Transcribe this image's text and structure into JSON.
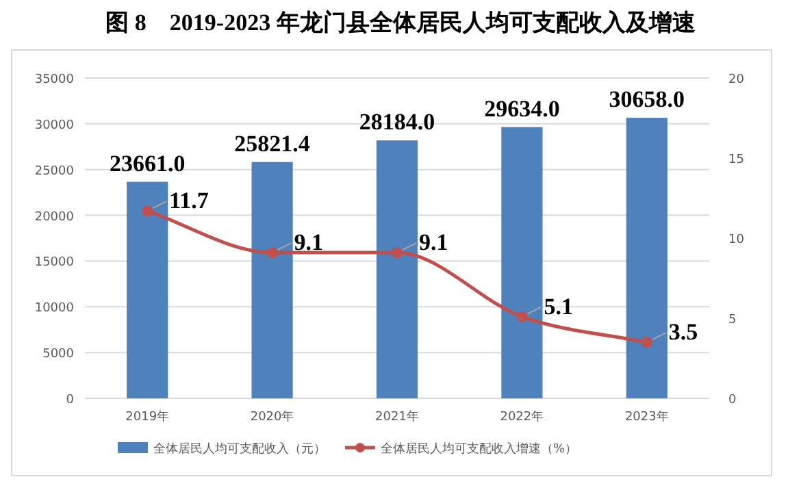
{
  "chart_data": {
    "type": "bar",
    "title": "图 8　2019-2023 年龙门县全体居民人均可支配收入及增速",
    "categories": [
      "2019年",
      "2020年",
      "2021年",
      "2022年",
      "2023年"
    ],
    "series": [
      {
        "name": "全体居民人均可支配收入（元）",
        "color": "#4f81bd",
        "values": [
          23661.0,
          25821.4,
          28184.0,
          29634.0,
          30658.0
        ],
        "value_labels": [
          "23661.0",
          "25821.4",
          "28184.0",
          "29634.0",
          "30658.0"
        ]
      },
      {
        "name": "全体居民人均可支配收入增速（%）",
        "type": "line",
        "axis": "y2",
        "color": "#c0504d",
        "values": [
          11.7,
          9.1,
          9.1,
          5.1,
          3.5
        ],
        "value_labels": [
          "11.7",
          "9.1",
          "9.1",
          "5.1",
          "3.5"
        ]
      }
    ],
    "ylim": [
      0,
      35000
    ],
    "yticks": [
      0,
      5000,
      10000,
      15000,
      20000,
      25000,
      30000,
      35000
    ],
    "y2lim": [
      0,
      20
    ],
    "y2ticks": [
      0,
      5,
      10,
      15,
      20
    ],
    "grid": "y",
    "legend": "bottom",
    "marker": "circle",
    "line_style": "solid"
  }
}
